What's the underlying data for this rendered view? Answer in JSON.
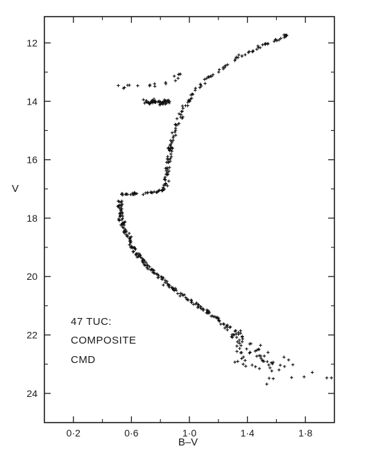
{
  "chart_data": {
    "type": "scatter",
    "xlabel": "B–V",
    "ylabel": "V",
    "xlim": [
      0.0,
      2.0
    ],
    "ylim": [
      25.0,
      11.1
    ],
    "y_inverted": true,
    "x_ticks": [
      {
        "value": 0.2,
        "label": "0·2"
      },
      {
        "value": 0.6,
        "label": "0·6"
      },
      {
        "value": 1.0,
        "label": "1·0"
      },
      {
        "value": 1.4,
        "label": "1·4"
      },
      {
        "value": 1.8,
        "label": "1·8"
      }
    ],
    "x_minor_ticks": [
      0.4,
      0.8,
      1.2,
      1.6
    ],
    "y_ticks": [
      {
        "value": 12,
        "label": "12"
      },
      {
        "value": 14,
        "label": "14"
      },
      {
        "value": 16,
        "label": "16"
      },
      {
        "value": 18,
        "label": "18"
      },
      {
        "value": 20,
        "label": "20"
      },
      {
        "value": 22,
        "label": "22"
      },
      {
        "value": 24,
        "label": "24"
      }
    ],
    "y_minor_ticks": [
      13,
      15,
      17,
      19,
      21,
      23
    ],
    "annotation": [
      "47 TUC:",
      "COMPOSITE",
      "CMD"
    ],
    "grid": false,
    "marker": "+",
    "marker_color": "#111111",
    "sequences": [
      {
        "part": "main-sequence",
        "points": [
          [
            0.52,
            17.4
          ],
          [
            0.52,
            17.6
          ],
          [
            0.53,
            17.8
          ],
          [
            0.53,
            18.0
          ],
          [
            0.54,
            18.2
          ],
          [
            0.55,
            18.4
          ],
          [
            0.57,
            18.6
          ],
          [
            0.59,
            18.8
          ],
          [
            0.61,
            19.0
          ],
          [
            0.64,
            19.2
          ],
          [
            0.67,
            19.4
          ],
          [
            0.7,
            19.6
          ],
          [
            0.74,
            19.8
          ],
          [
            0.78,
            20.0
          ],
          [
            0.83,
            20.2
          ],
          [
            0.88,
            20.4
          ],
          [
            0.94,
            20.6
          ],
          [
            1.0,
            20.8
          ],
          [
            1.06,
            21.0
          ],
          [
            1.12,
            21.2
          ],
          [
            1.18,
            21.4
          ],
          [
            1.23,
            21.6
          ],
          [
            1.28,
            21.8
          ],
          [
            1.32,
            22.0
          ],
          [
            1.36,
            22.2
          ],
          [
            1.4,
            22.4
          ],
          [
            1.44,
            22.6
          ],
          [
            1.48,
            22.8
          ],
          [
            1.52,
            23.0
          ],
          [
            1.56,
            23.2
          ]
        ]
      },
      {
        "part": "subgiant-branch",
        "points": [
          [
            0.52,
            17.2
          ],
          [
            0.6,
            17.18
          ],
          [
            0.68,
            17.15
          ],
          [
            0.76,
            17.12
          ],
          [
            0.82,
            17.05
          ],
          [
            0.84,
            16.8
          ],
          [
            0.85,
            16.5
          ],
          [
            0.85,
            16.2
          ],
          [
            0.86,
            15.9
          ],
          [
            0.87,
            15.6
          ]
        ]
      },
      {
        "part": "red-giant-branch",
        "points": [
          [
            0.87,
            15.6
          ],
          [
            0.88,
            15.3
          ],
          [
            0.9,
            15.0
          ],
          [
            0.92,
            14.7
          ],
          [
            0.95,
            14.4
          ],
          [
            0.98,
            14.1
          ],
          [
            1.02,
            13.8
          ],
          [
            1.07,
            13.5
          ],
          [
            1.13,
            13.2
          ],
          [
            1.2,
            12.95
          ],
          [
            1.28,
            12.7
          ],
          [
            1.36,
            12.45
          ],
          [
            1.44,
            12.25
          ],
          [
            1.52,
            12.05
          ],
          [
            1.6,
            11.9
          ],
          [
            1.67,
            11.75
          ]
        ]
      },
      {
        "part": "horizontal-branch-clump",
        "points": [
          [
            0.7,
            14.0
          ],
          [
            0.73,
            14.05
          ],
          [
            0.76,
            14.0
          ],
          [
            0.79,
            14.02
          ],
          [
            0.82,
            14.05
          ],
          [
            0.84,
            14.0
          ]
        ]
      },
      {
        "part": "scattered-upper",
        "points": [
          [
            0.48,
            13.55
          ],
          [
            0.55,
            13.5
          ],
          [
            0.6,
            13.45
          ],
          [
            0.67,
            13.5
          ],
          [
            0.72,
            13.4
          ],
          [
            0.8,
            13.45
          ],
          [
            0.85,
            13.3
          ],
          [
            0.9,
            13.2
          ],
          [
            0.95,
            13.1
          ]
        ]
      },
      {
        "part": "faint-red-tail",
        "points": [
          [
            1.65,
            23.4
          ],
          [
            1.75,
            23.45
          ],
          [
            1.82,
            23.35
          ],
          [
            1.9,
            23.2
          ],
          [
            1.95,
            23.5
          ]
        ]
      }
    ]
  }
}
